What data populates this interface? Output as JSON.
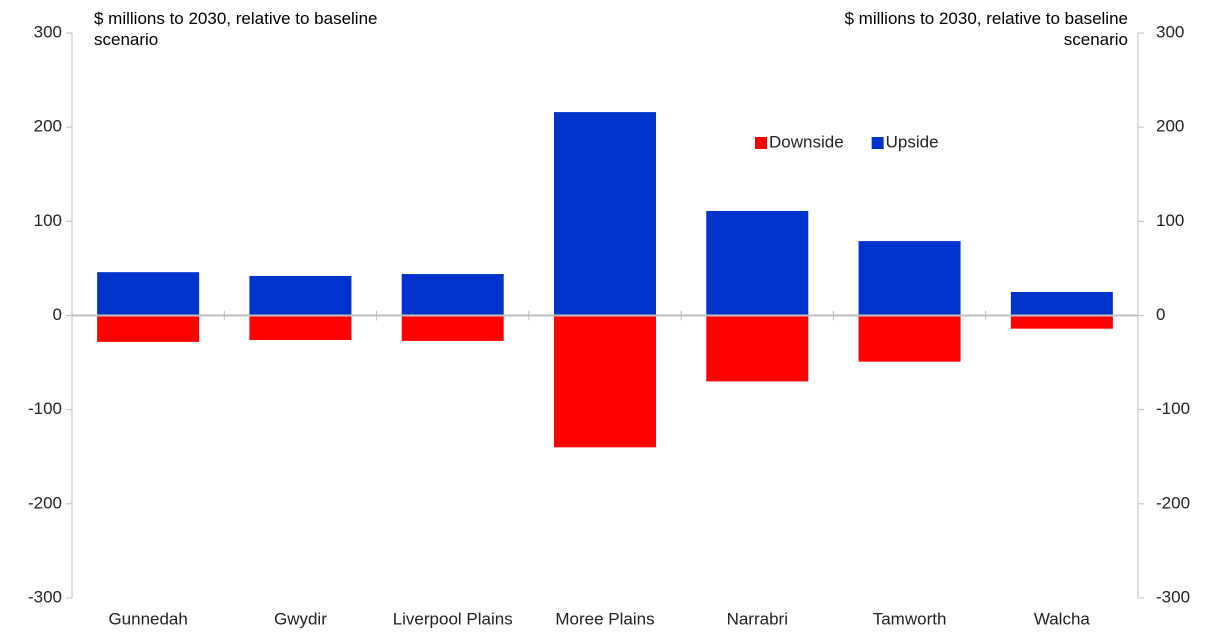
{
  "chart_data": {
    "type": "bar",
    "stacked": true,
    "ylabel": "$ millions to 2030, relative to baseline scenario",
    "y2label": "$ millions to 2030, relative to baseline scenario",
    "categories": [
      "Gunnedah",
      "Gwydir",
      "Liverpool Plains",
      "Moree Plains",
      "Narrabri",
      "Tamworth",
      "Walcha"
    ],
    "series": [
      {
        "name": "Downside",
        "color": "#ff0000",
        "values": [
          -28,
          -26,
          -27,
          -140,
          -70,
          -49,
          -14
        ]
      },
      {
        "name": "Upside",
        "color": "#0033cc",
        "values": [
          46,
          42,
          44,
          216,
          111,
          79,
          25
        ]
      }
    ],
    "ylim": [
      -300,
      300
    ],
    "yticks": [
      -300,
      -200,
      -100,
      0,
      100,
      200,
      300
    ],
    "y2lim": [
      -300,
      300
    ],
    "y2ticks": [
      -300,
      -200,
      -100,
      0,
      100,
      200,
      300
    ],
    "legend": "upper right"
  }
}
